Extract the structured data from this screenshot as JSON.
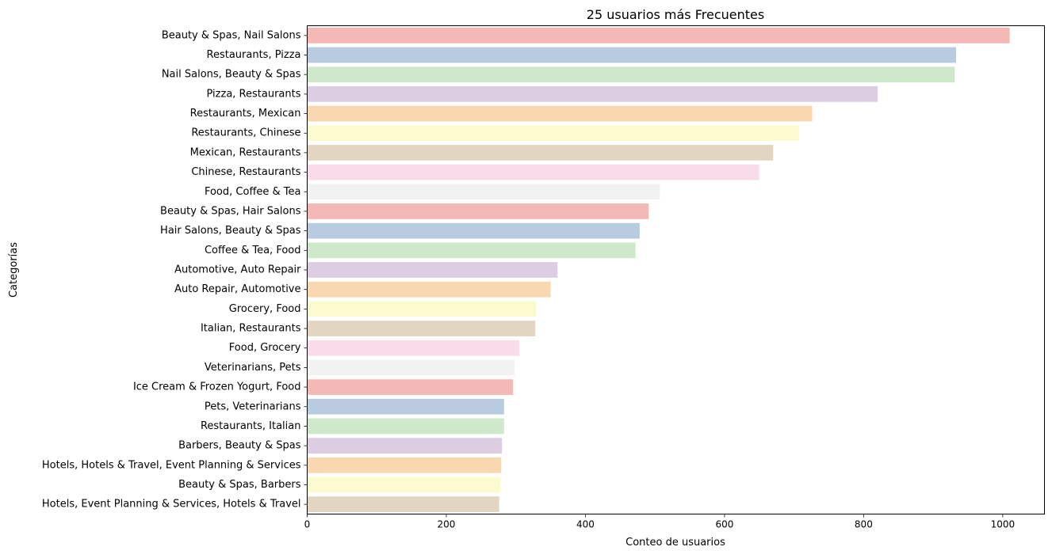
{
  "chart_data": {
    "type": "bar",
    "orientation": "horizontal",
    "title": "25 usuarios más Frecuentes",
    "xlabel": "Conteo de usuarios",
    "ylabel": "Categorías",
    "xlim": [
      0,
      1060
    ],
    "xticks": [
      0,
      200,
      400,
      600,
      800,
      1000
    ],
    "grid": false,
    "categories": [
      "Beauty & Spas, Nail Salons",
      "Restaurants, Pizza",
      "Nail Salons, Beauty & Spas",
      "Pizza, Restaurants",
      "Restaurants, Mexican",
      "Restaurants, Chinese",
      "Mexican, Restaurants",
      "Chinese, Restaurants",
      "Food, Coffee & Tea",
      "Beauty & Spas, Hair Salons",
      "Hair Salons, Beauty & Spas",
      "Coffee & Tea, Food",
      "Automotive, Auto Repair",
      "Auto Repair, Automotive",
      "Grocery, Food",
      "Italian, Restaurants",
      "Food, Grocery",
      "Veterinarians, Pets",
      "Ice Cream & Frozen Yogurt, Food",
      "Pets, Veterinarians",
      "Restaurants, Italian",
      "Barbers, Beauty & Spas",
      "Hotels, Hotels & Travel, Event Planning & Services",
      "Beauty & Spas, Barbers",
      "Hotels, Event Planning & Services, Hotels & Travel"
    ],
    "values": [
      1010,
      933,
      931,
      820,
      726,
      707,
      670,
      650,
      507,
      491,
      478,
      472,
      360,
      350,
      329,
      328,
      305,
      298,
      296,
      283,
      283,
      280,
      279,
      278,
      276
    ],
    "palette": [
      "#f4b9b7",
      "#b8cbdf",
      "#cfe7cb",
      "#dccde2",
      "#f7d8b0",
      "#fbfbcf",
      "#e2d5c1",
      "#f8dde9",
      "#f2f2f2"
    ]
  }
}
